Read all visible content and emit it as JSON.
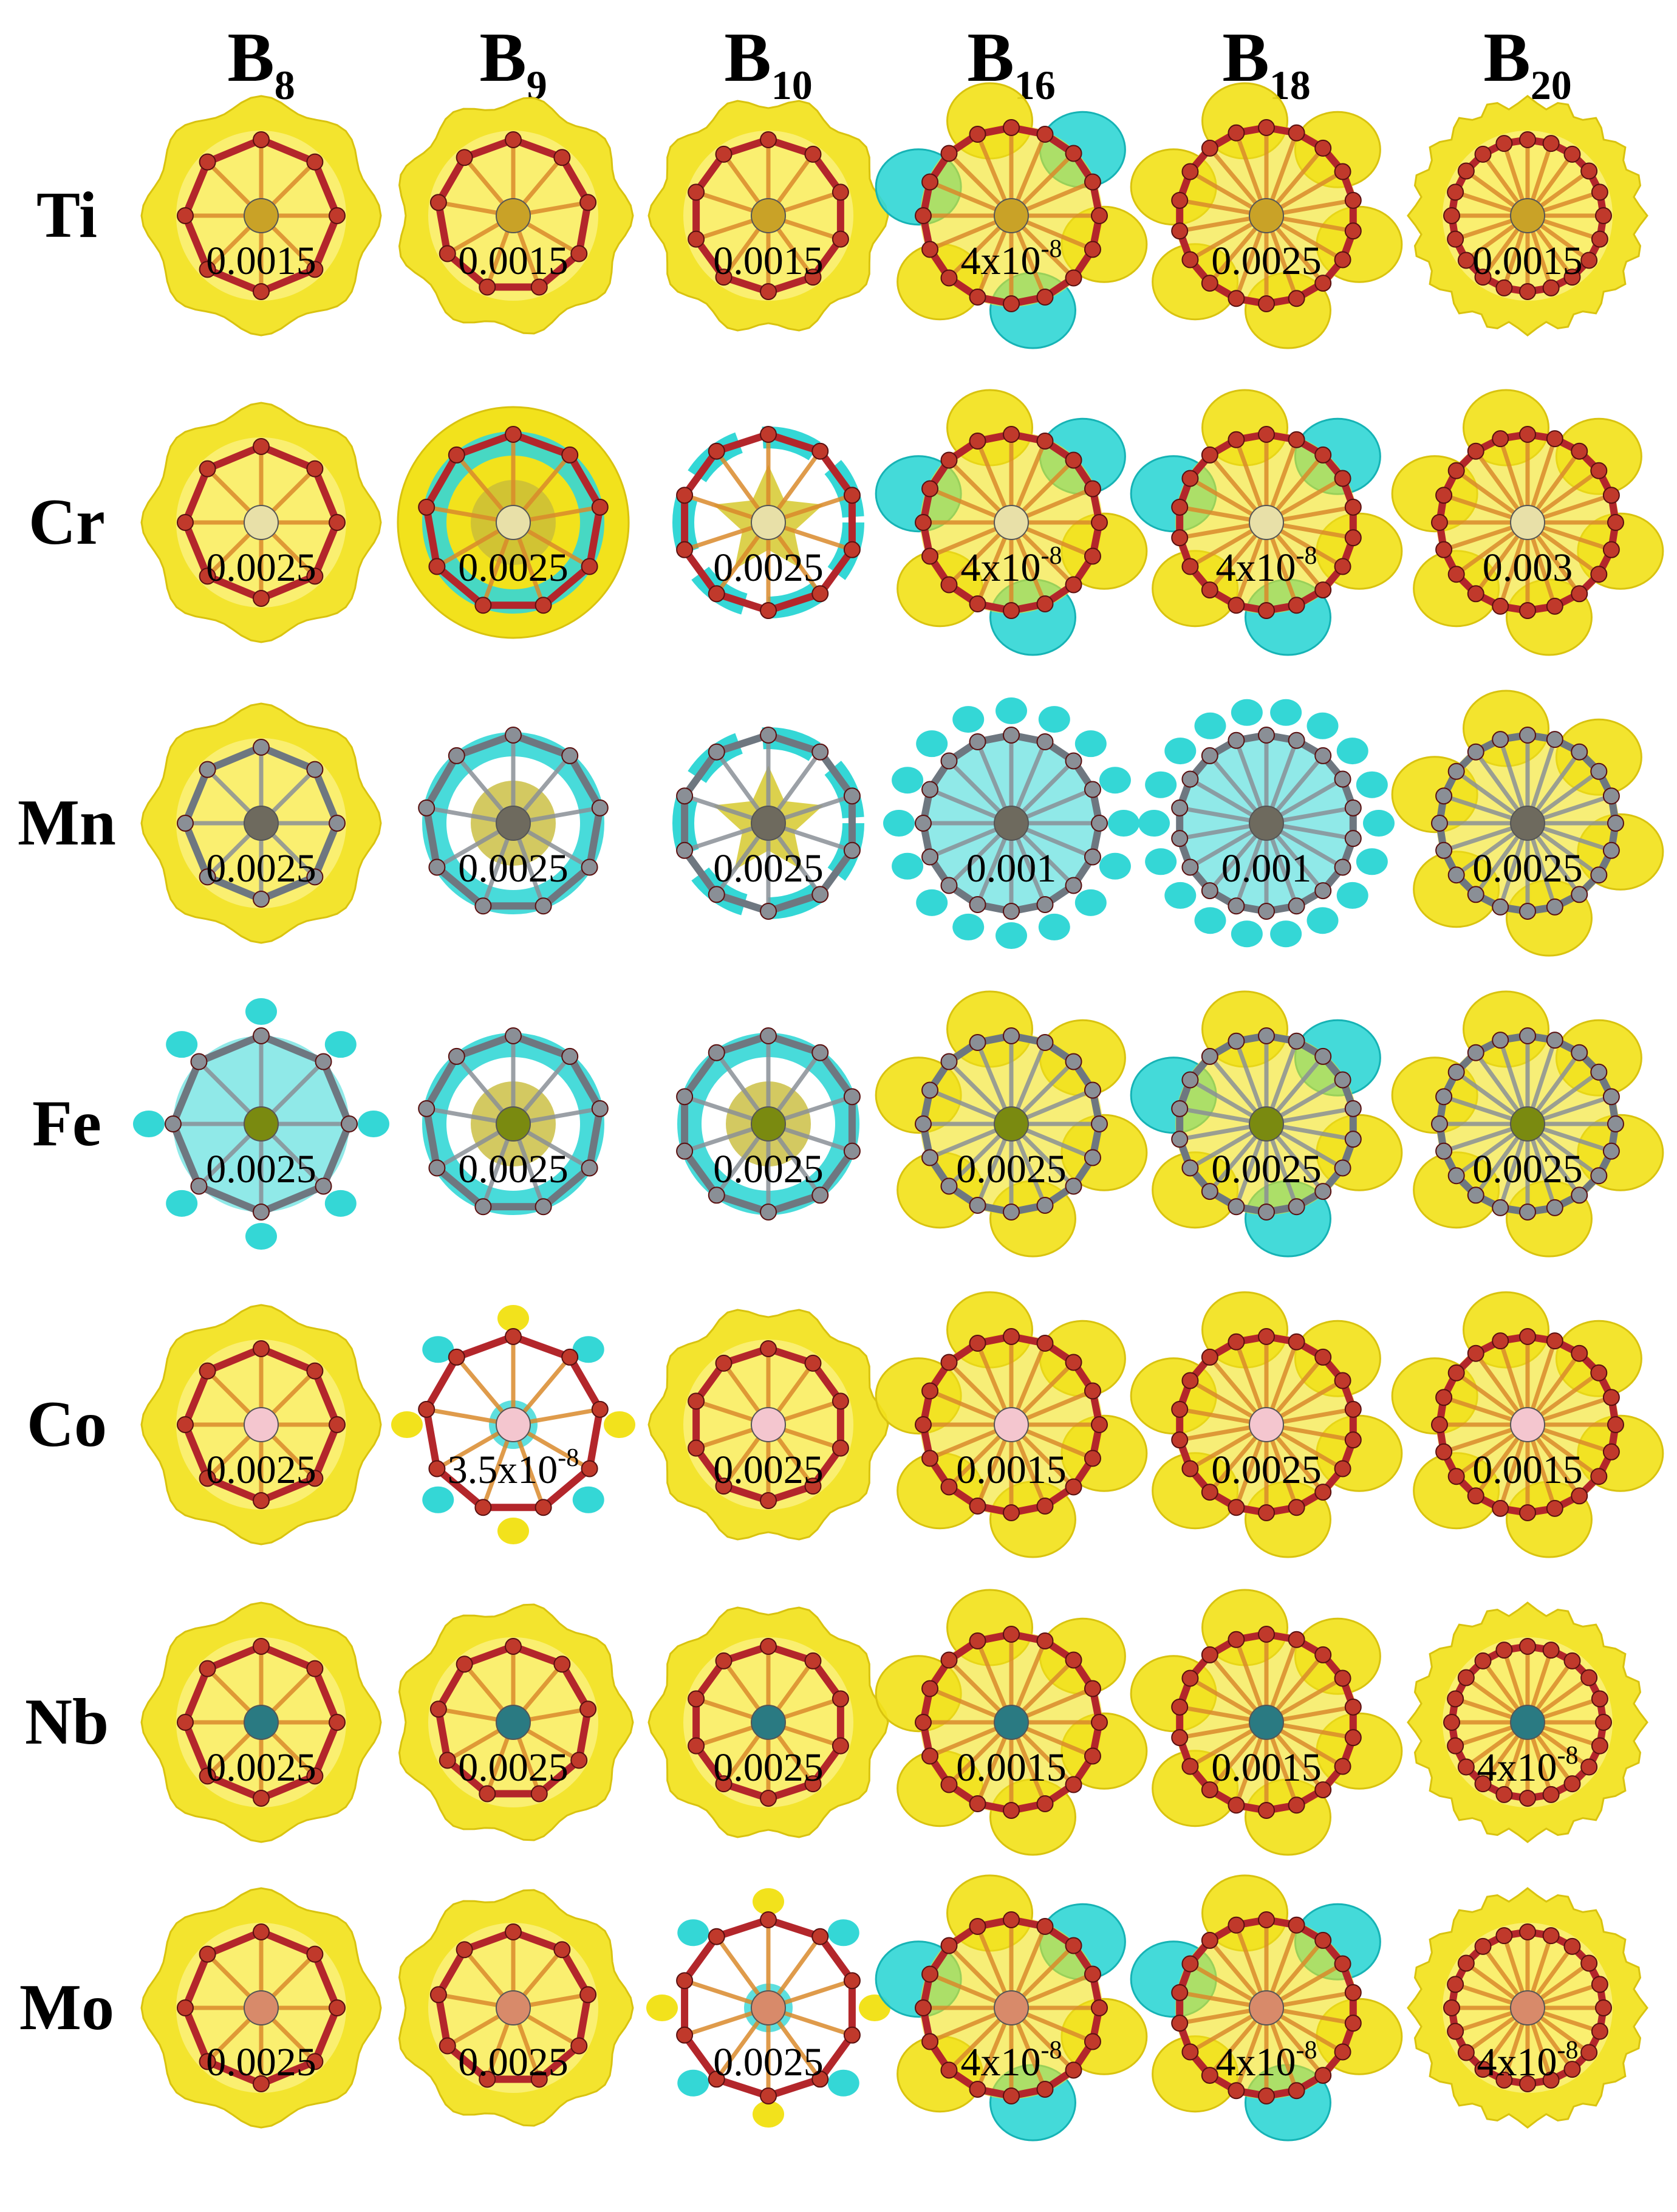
{
  "figure": {
    "columns": [
      {
        "base": "B",
        "sub": "8",
        "atoms": 8
      },
      {
        "base": "B",
        "sub": "9",
        "atoms": 9
      },
      {
        "base": "B",
        "sub": "10",
        "atoms": 10
      },
      {
        "base": "B",
        "sub": "16",
        "atoms": 16
      },
      {
        "base": "B",
        "sub": "18",
        "atoms": 18
      },
      {
        "base": "B",
        "sub": "20",
        "atoms": 20
      }
    ],
    "rows": [
      {
        "label": "Ti",
        "center_color": "#c9a227",
        "boron_color": "#d98a2b",
        "values": [
          {
            "text": "0.0015",
            "exp": ""
          },
          {
            "text": "0.0015",
            "exp": ""
          },
          {
            "text": "0.0015",
            "exp": ""
          },
          {
            "text": "4x10",
            "exp": "-8"
          },
          {
            "text": "0.0025",
            "exp": ""
          },
          {
            "text": "0.0015",
            "exp": ""
          }
        ],
        "modes": [
          "shell-yellow",
          "shell-yellow",
          "shell-yellow",
          "lobes-mixed",
          "lobes-yellow",
          "shell-yellow"
        ]
      },
      {
        "label": "Cr",
        "center_color": "#e8e0a8",
        "boron_color": "#d98a2b",
        "values": [
          {
            "text": "0.0025",
            "exp": ""
          },
          {
            "text": "0.0025",
            "exp": ""
          },
          {
            "text": "0.0025",
            "exp": ""
          },
          {
            "text": "4x10",
            "exp": "-8"
          },
          {
            "text": "4x10",
            "exp": "-8"
          },
          {
            "text": "0.003",
            "exp": ""
          }
        ],
        "modes": [
          "shell-yellow",
          "ring-cyan-shell",
          "star-cyan",
          "lobes-mixed",
          "lobes-mixed",
          "lobes-yellow"
        ]
      },
      {
        "label": "Mn",
        "center_color": "#6e6a5e",
        "boron_color": "#8a8f96",
        "values": [
          {
            "text": "0.0025",
            "exp": ""
          },
          {
            "text": "0.0025",
            "exp": ""
          },
          {
            "text": "0.0025",
            "exp": ""
          },
          {
            "text": "0.001",
            "exp": ""
          },
          {
            "text": "0.001",
            "exp": ""
          },
          {
            "text": "0.0025",
            "exp": ""
          }
        ],
        "modes": [
          "shell-yellow",
          "ring-cyan",
          "star-cyan",
          "beads-cyan",
          "beads-cyan",
          "lobes-yellow"
        ]
      },
      {
        "label": "Fe",
        "center_color": "#7a8a10",
        "boron_color": "#8a8f96",
        "values": [
          {
            "text": "0.0025",
            "exp": ""
          },
          {
            "text": "0.0025",
            "exp": ""
          },
          {
            "text": "0.0025",
            "exp": ""
          },
          {
            "text": "0.0025",
            "exp": ""
          },
          {
            "text": "0.0025",
            "exp": ""
          },
          {
            "text": "0.0025",
            "exp": ""
          }
        ],
        "modes": [
          "beads-cyan",
          "ring-cyan",
          "ring-cyan",
          "lobes-yellow",
          "lobes-mixed",
          "lobes-yellow"
        ]
      },
      {
        "label": "Co",
        "center_color": "#f4c6cf",
        "boron_color": "#d98a2b",
        "values": [
          {
            "text": "0.0025",
            "exp": ""
          },
          {
            "text": "3.5x10",
            "exp": "-8"
          },
          {
            "text": "0.0025",
            "exp": ""
          },
          {
            "text": "0.0015",
            "exp": ""
          },
          {
            "text": "0.0025",
            "exp": ""
          },
          {
            "text": "0.0015",
            "exp": ""
          }
        ],
        "modes": [
          "shell-yellow",
          "sparse-mixed",
          "shell-yellow",
          "lobes-yellow",
          "lobes-yellow",
          "lobes-yellow"
        ]
      },
      {
        "label": "Nb",
        "center_color": "#2a7a82",
        "boron_color": "#d98a2b",
        "values": [
          {
            "text": "0.0025",
            "exp": ""
          },
          {
            "text": "0.0025",
            "exp": ""
          },
          {
            "text": "0.0025",
            "exp": ""
          },
          {
            "text": "0.0015",
            "exp": ""
          },
          {
            "text": "0.0015",
            "exp": ""
          },
          {
            "text": "4x10",
            "exp": "-8"
          }
        ],
        "modes": [
          "shell-yellow",
          "shell-yellow",
          "shell-yellow",
          "lobes-yellow",
          "lobes-yellow",
          "shell-yellow"
        ]
      },
      {
        "label": "Mo",
        "center_color": "#d88a6a",
        "boron_color": "#d98a2b",
        "values": [
          {
            "text": "0.0025",
            "exp": ""
          },
          {
            "text": "0.0025",
            "exp": ""
          },
          {
            "text": "0.0025",
            "exp": ""
          },
          {
            "text": "4x10",
            "exp": "-8"
          },
          {
            "text": "4x10",
            "exp": "-8"
          },
          {
            "text": "4x10",
            "exp": "-8"
          }
        ],
        "modes": [
          "shell-yellow",
          "shell-yellow",
          "sparse-mixed",
          "lobes-mixed",
          "lobes-mixed",
          "shell-yellow"
        ]
      }
    ]
  }
}
